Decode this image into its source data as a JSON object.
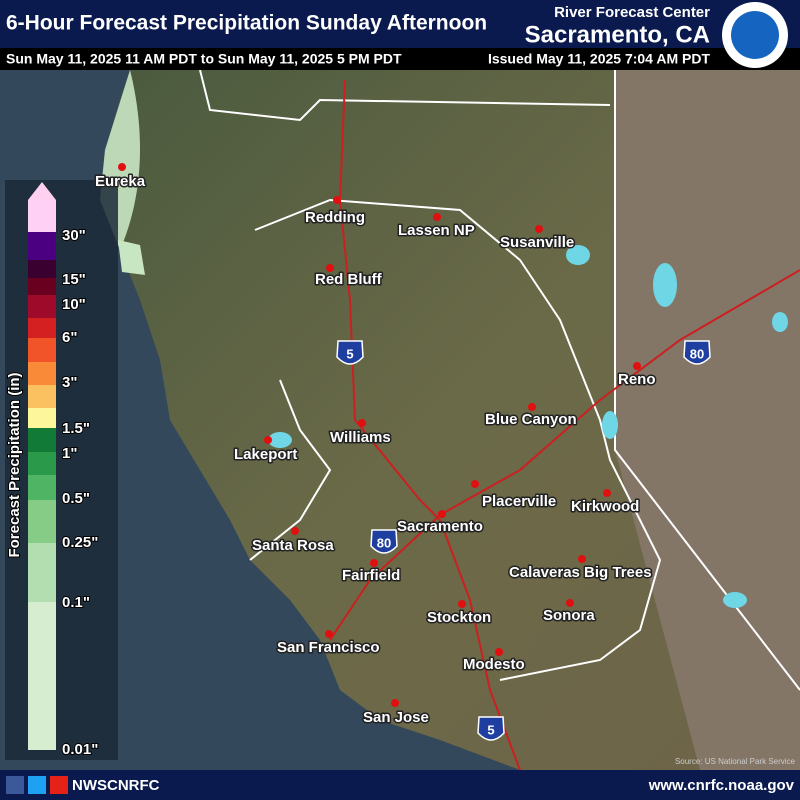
{
  "header": {
    "title": "6-Hour Forecast Precipitation Sunday Afternoon",
    "agency": "River Forecast Center",
    "office": "Sacramento, CA",
    "valid": "Sun May 11, 2025 11 AM PDT to Sun May 11, 2025 5 PM PDT",
    "issued": "Issued May 11, 2025 7:04 AM PDT"
  },
  "legend": {
    "title": "Forecast Precipitation (in)",
    "labels": [
      "30\"",
      "15\"",
      "10\"",
      "6\"",
      "3\"",
      "1.5\"",
      "1\"",
      "0.5\"",
      "0.25\"",
      "0.1\"",
      "0.01\""
    ]
  },
  "cities": [
    "Eureka",
    "Redding",
    "Lassen NP",
    "Susanville",
    "Red Bluff",
    "Reno",
    "Blue Canyon",
    "Lakeport",
    "Williams",
    "Placerville",
    "Kirkwood",
    "Sacramento",
    "Santa Rosa",
    "Fairfield",
    "Calaveras Big Trees",
    "Sonora",
    "Stockton",
    "San Francisco",
    "Modesto",
    "San Jose"
  ],
  "highways": [
    "5",
    "80",
    "80",
    "5"
  ],
  "source": "Source: US National Park Service",
  "footer": {
    "social": "NWSCNRFC",
    "url": "www.cnrfc.noaa.gov"
  }
}
